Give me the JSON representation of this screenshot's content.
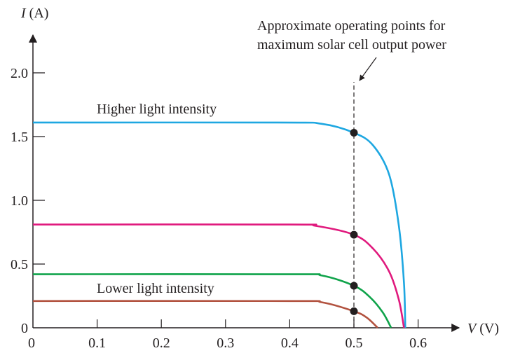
{
  "chart_data": {
    "type": "line",
    "xlabel_var": "V",
    "xlabel_unit": " (V)",
    "ylabel_var": "I",
    "ylabel_unit": " (A)",
    "xlim": [
      0,
      0.65
    ],
    "ylim": [
      0,
      2.1
    ],
    "x_ticks": [
      {
        "value": 0,
        "label": "0"
      },
      {
        "value": 0.1,
        "label": "0.1"
      },
      {
        "value": 0.2,
        "label": "0.2"
      },
      {
        "value": 0.3,
        "label": "0.3"
      },
      {
        "value": 0.4,
        "label": "0.4"
      },
      {
        "value": 0.5,
        "label": "0.5"
      },
      {
        "value": 0.6,
        "label": "0.6"
      }
    ],
    "y_ticks": [
      {
        "value": 0,
        "label": "0"
      },
      {
        "value": 0.5,
        "label": "0.5"
      },
      {
        "value": 1.0,
        "label": "1.0"
      },
      {
        "value": 1.5,
        "label": "1.5"
      },
      {
        "value": 2.0,
        "label": "2.0"
      }
    ],
    "grid": false,
    "series": [
      {
        "color": "#1ea7e1",
        "values": [
          [
            0,
            1.61
          ],
          [
            0.38,
            1.61
          ],
          [
            0.45,
            1.6
          ],
          [
            0.5,
            1.53
          ],
          [
            0.53,
            1.43
          ],
          [
            0.555,
            1.2
          ],
          [
            0.57,
            0.8
          ],
          [
            0.578,
            0.35
          ],
          [
            0.58,
            0
          ]
        ]
      },
      {
        "color": "#e0197d",
        "values": [
          [
            0,
            0.81
          ],
          [
            0.4,
            0.81
          ],
          [
            0.44,
            0.8
          ],
          [
            0.5,
            0.73
          ],
          [
            0.53,
            0.62
          ],
          [
            0.555,
            0.44
          ],
          [
            0.57,
            0.22
          ],
          [
            0.578,
            0
          ]
        ]
      },
      {
        "color": "#0fa34a",
        "values": [
          [
            0,
            0.42
          ],
          [
            0.4,
            0.42
          ],
          [
            0.45,
            0.41
          ],
          [
            0.5,
            0.33
          ],
          [
            0.525,
            0.24
          ],
          [
            0.545,
            0.12
          ],
          [
            0.558,
            0
          ]
        ]
      },
      {
        "color": "#b2523f",
        "values": [
          [
            0,
            0.21
          ],
          [
            0.4,
            0.21
          ],
          [
            0.45,
            0.2
          ],
          [
            0.5,
            0.13
          ],
          [
            0.52,
            0.08
          ],
          [
            0.537,
            0
          ]
        ]
      }
    ],
    "operating_points": [
      {
        "x": 0.5,
        "y": 1.53
      },
      {
        "x": 0.5,
        "y": 0.73
      },
      {
        "x": 0.5,
        "y": 0.33
      },
      {
        "x": 0.5,
        "y": 0.13
      }
    ],
    "operating_line_x": 0.5,
    "annotations": {
      "operating_points_line1": "Approximate operating points for",
      "operating_points_line2": "maximum solar cell output power",
      "higher": "Higher light intensity",
      "lower": "Lower light intensity"
    }
  }
}
